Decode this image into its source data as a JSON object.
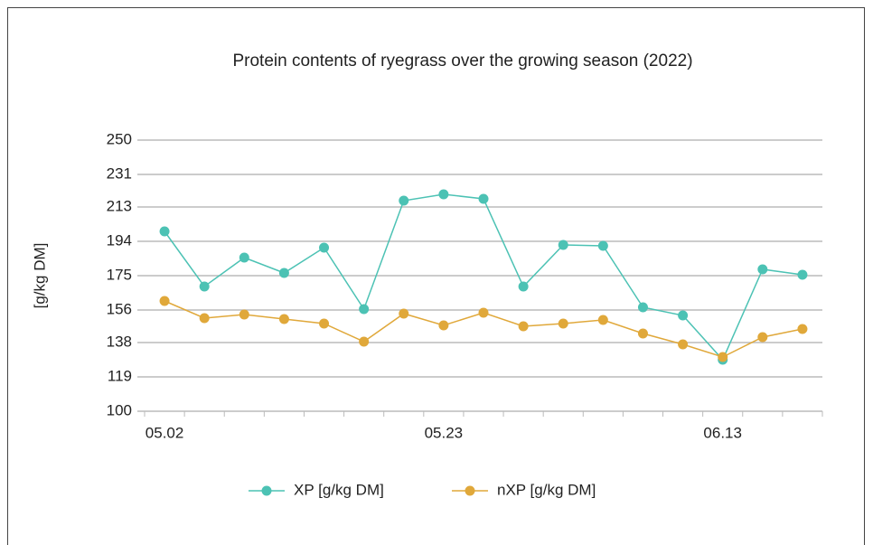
{
  "chart_data": {
    "type": "line",
    "title": "Protein contents of ryegrass over the growing season (2022)",
    "y_label": "[g/kg DM]",
    "categories": [
      "05.02",
      null,
      null,
      null,
      null,
      null,
      null,
      "05.23",
      null,
      null,
      null,
      null,
      null,
      null,
      "06.13",
      null,
      null
    ],
    "series": [
      {
        "name": "XP [g/kg DM]",
        "color": "#4cc2b4",
        "values": [
          199.5,
          169,
          185,
          176.5,
          190.5,
          156.5,
          216.5,
          220,
          217.5,
          169,
          192,
          191.5,
          157.5,
          153,
          128.5,
          178.5,
          175.5
        ]
      },
      {
        "name": "nXP [g/kg DM]",
        "color": "#e0a83a",
        "values": [
          161,
          151.5,
          153.5,
          151,
          148.5,
          138.5,
          154,
          147.5,
          154.5,
          147,
          148.5,
          150.5,
          143,
          137,
          130,
          141,
          145.5
        ]
      }
    ],
    "ylim": [
      100,
      250
    ],
    "yticks": [
      100,
      119,
      138,
      156,
      175,
      194,
      213,
      231,
      250
    ],
    "grid": true
  }
}
